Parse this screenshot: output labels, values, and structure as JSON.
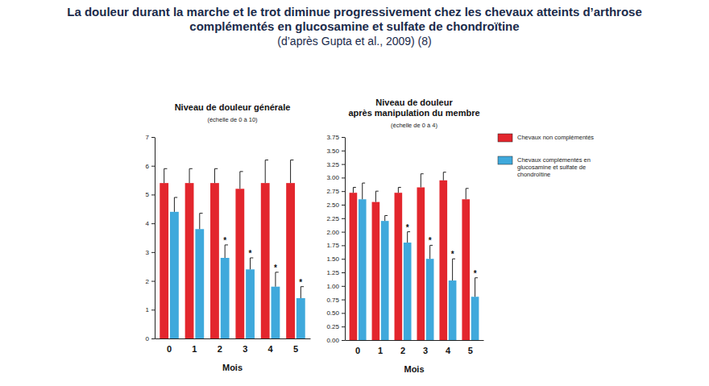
{
  "header": {
    "title": [
      "La douleur durant la marche et le trot diminue progressivement chez les chevaux atteints d’arthrose",
      "complémentés en glucosamine et sulfate de chondroïtine"
    ],
    "subtitle": "(d’après Gupta et al., 2009) (8)"
  },
  "chart_data": [
    {
      "type": "bar",
      "title": [
        "Niveau de douleur générale"
      ],
      "subtitle": "(échelle de 0 à 10)",
      "x_label": "Mois",
      "categories": [
        0,
        1,
        2,
        3,
        4,
        5
      ],
      "series": [
        {
          "name": "Chevaux non complémentés",
          "color": "#e3262d",
          "values": [
            5.4,
            5.4,
            5.4,
            5.2,
            5.4,
            5.4
          ],
          "errors": [
            0.5,
            0.5,
            0.5,
            0.6,
            0.8,
            0.8
          ]
        },
        {
          "name": "Chevaux complémentés en glucosamine et sulfate de chondroïtine",
          "color": "#3fa9dc",
          "values": [
            4.4,
            3.8,
            2.8,
            2.4,
            1.8,
            1.4
          ],
          "errors": [
            0.5,
            0.55,
            0.45,
            0.4,
            0.5,
            0.4
          ],
          "significance": [
            null,
            null,
            "*",
            "*",
            "*",
            "*"
          ]
        }
      ],
      "ylim": [
        0,
        7
      ],
      "yticks": [
        0,
        1,
        2,
        3,
        4,
        5,
        6,
        7
      ],
      "grid": false
    },
    {
      "type": "bar",
      "title": [
        "Niveau de douleur",
        "après manipulation du membre"
      ],
      "subtitle": "(échelle de 0 à 4)",
      "x_label": "Mois",
      "categories": [
        0,
        1,
        2,
        3,
        4,
        5
      ],
      "series": [
        {
          "name": "Chevaux non complémentés",
          "color": "#e3262d",
          "values": [
            2.72,
            2.55,
            2.72,
            2.82,
            2.95,
            2.6
          ],
          "errors": [
            0.1,
            0.2,
            0.1,
            0.25,
            0.15,
            0.2
          ]
        },
        {
          "name": "Chevaux complémentés en glucosamine et sulfate de chondroïtine",
          "color": "#3fa9dc",
          "values": [
            2.6,
            2.2,
            1.8,
            1.5,
            1.1,
            0.8
          ],
          "errors": [
            0.3,
            0.1,
            0.2,
            0.25,
            0.4,
            0.35
          ],
          "significance": [
            null,
            null,
            "*",
            "*",
            "*",
            "*"
          ]
        }
      ],
      "ylim": [
        0,
        3.75
      ],
      "yticks": [
        {
          "value": 0,
          "label": "0.00"
        },
        {
          "value": 0.25,
          "label": "0.25"
        },
        {
          "value": 0.5,
          "label": "0.50"
        },
        {
          "value": 0.75,
          "label": "0.75"
        },
        {
          "value": 1,
          "label": "1.00"
        },
        {
          "value": 1.25,
          "label": "1.25"
        },
        {
          "value": 1.5,
          "label": "1.50"
        },
        {
          "value": 1.75,
          "label": "1.75"
        },
        {
          "value": 2,
          "label": "2.00"
        },
        {
          "value": 2.25,
          "label": "2.25"
        },
        {
          "value": 2.5,
          "label": "2.50"
        },
        {
          "value": 2.75,
          "label": "2.75"
        },
        {
          "value": 3,
          "label": "3.00"
        },
        {
          "value": 3.25,
          "label": "3.25"
        },
        {
          "value": 3.5,
          "label": "3.50"
        },
        {
          "value": 3.75,
          "label": "3.75"
        }
      ],
      "grid": false,
      "legend": "right"
    }
  ]
}
